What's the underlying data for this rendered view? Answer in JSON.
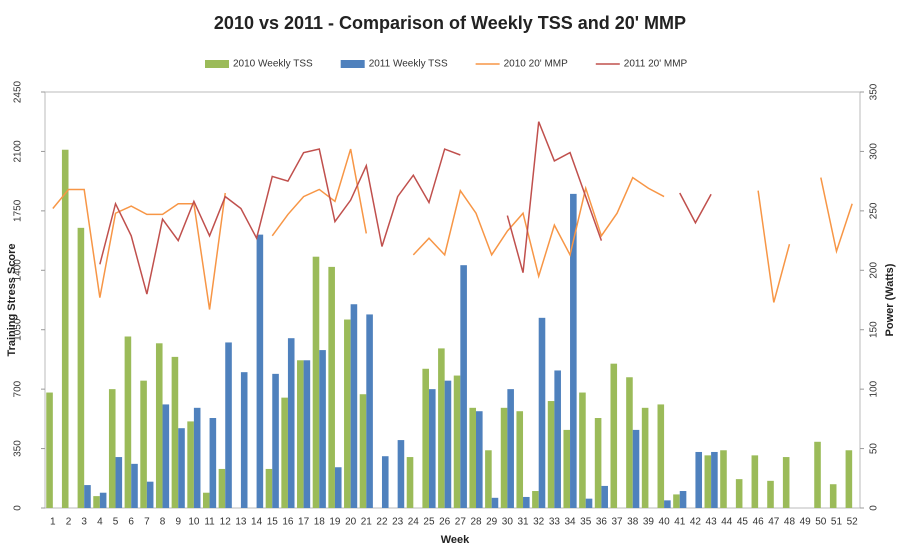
{
  "chart_data": {
    "type": "bar-line",
    "title": "2010 vs 2011 - Comparison of Weekly TSS and 20' MMP",
    "x_label": "Week",
    "y_label": "Training Stress Score",
    "y2_label": "Power (Watts)",
    "categories": [
      "1",
      "2",
      "3",
      "4",
      "5",
      "6",
      "7",
      "8",
      "9",
      "10",
      "11",
      "12",
      "13",
      "14",
      "15",
      "16",
      "17",
      "18",
      "19",
      "20",
      "21",
      "22",
      "23",
      "24",
      "25",
      "26",
      "27",
      "28",
      "29",
      "30",
      "31",
      "32",
      "33",
      "34",
      "35",
      "36",
      "37",
      "38",
      "39",
      "40",
      "41",
      "42",
      "43",
      "44",
      "45",
      "46",
      "47",
      "48",
      "49",
      "50",
      "51",
      "52"
    ],
    "series": [
      {
        "name": "2010 Weekly TSS",
        "kind": "bar",
        "color": "#9bbb59",
        "values": [
          680,
          2110,
          1650,
          70,
          700,
          1010,
          750,
          970,
          890,
          510,
          90,
          230,
          null,
          null,
          230,
          650,
          870,
          1480,
          1420,
          1110,
          670,
          null,
          null,
          300,
          820,
          940,
          780,
          590,
          340,
          590,
          570,
          100,
          630,
          460,
          680,
          530,
          850,
          770,
          590,
          610,
          80,
          null,
          310,
          340,
          170,
          310,
          160,
          300,
          null,
          390,
          140,
          340
        ]
      },
      {
        "name": "2011 Weekly TSS",
        "kind": "bar",
        "color": "#4f81bd",
        "values": [
          null,
          null,
          135,
          90,
          300,
          260,
          155,
          610,
          470,
          590,
          530,
          975,
          800,
          1610,
          790,
          1000,
          870,
          930,
          240,
          1200,
          1140,
          305,
          400,
          null,
          700,
          750,
          1430,
          570,
          60,
          700,
          65,
          1120,
          810,
          1850,
          55,
          130,
          null,
          460,
          null,
          45,
          100,
          330,
          330,
          null,
          null,
          null,
          null,
          null,
          null,
          null,
          null,
          null
        ]
      },
      {
        "name": "2010 20' MMP",
        "kind": "line",
        "axis": "y2",
        "color": "#f79646",
        "values": [
          252,
          268,
          268,
          177,
          248,
          254,
          247,
          247,
          256,
          256,
          167,
          265,
          null,
          null,
          229,
          247,
          262,
          268,
          258,
          302,
          231,
          null,
          null,
          213,
          227,
          213,
          267,
          248,
          213,
          233,
          248,
          195,
          238,
          213,
          269,
          229,
          248,
          278,
          269,
          262,
          null,
          null,
          null,
          null,
          null,
          267,
          173,
          222,
          null,
          278,
          216,
          256
        ]
      },
      {
        "name": "2011 20' MMP",
        "kind": "line",
        "axis": "y2",
        "color": "#c0504d",
        "values": [
          null,
          null,
          null,
          205,
          256,
          229,
          180,
          243,
          225,
          258,
          229,
          262,
          252,
          227,
          279,
          275,
          299,
          302,
          241,
          259,
          288,
          220,
          262,
          280,
          257,
          302,
          297,
          null,
          null,
          246,
          198,
          325,
          292,
          299,
          262,
          225,
          null,
          null,
          null,
          null,
          265,
          240,
          264,
          null,
          null,
          null,
          null,
          null,
          null,
          null,
          null,
          null
        ]
      }
    ],
    "ylim": [
      0,
      2450
    ],
    "yticks": [
      0,
      350,
      700,
      1050,
      1400,
      1750,
      2100,
      2450
    ],
    "y2lim": [
      0,
      350
    ],
    "y2ticks": [
      0,
      50,
      100,
      150,
      200,
      250,
      300,
      350
    ],
    "legend": "top"
  }
}
